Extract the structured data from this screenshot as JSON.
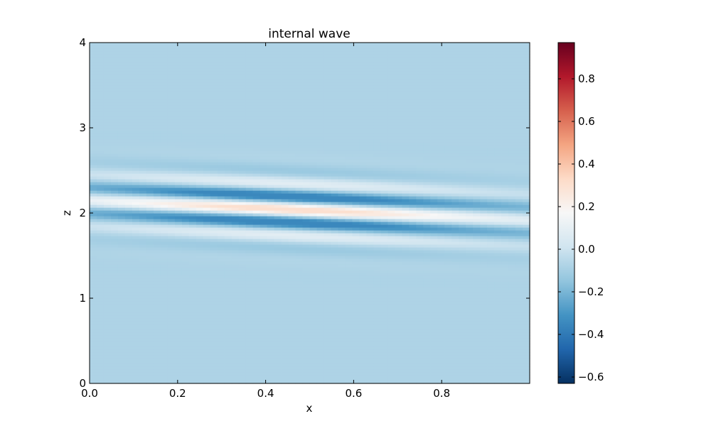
{
  "chart_data": {
    "type": "heatmap",
    "title": "internal wave",
    "xlabel": "x",
    "ylabel": "z",
    "xlim": [
      0.0,
      1.0
    ],
    "ylim": [
      0.0,
      4.0
    ],
    "x_ticks": [
      {
        "value": 0.0,
        "label": "0.0"
      },
      {
        "value": 0.2,
        "label": "0.2"
      },
      {
        "value": 0.4,
        "label": "0.4"
      },
      {
        "value": 0.6,
        "label": "0.6"
      },
      {
        "value": 0.8,
        "label": "0.8"
      }
    ],
    "y_ticks": [
      {
        "value": 0,
        "label": "0"
      },
      {
        "value": 1,
        "label": "1"
      },
      {
        "value": 2,
        "label": "2"
      },
      {
        "value": 3,
        "label": "3"
      },
      {
        "value": 4,
        "label": "4"
      }
    ],
    "colormap": "RdBu_r",
    "colorbar": {
      "vmin": -0.63,
      "vmax": 0.97,
      "ticks": [
        {
          "value": -0.6,
          "label": "−0.6"
        },
        {
          "value": -0.4,
          "label": "−0.4"
        },
        {
          "value": -0.2,
          "label": "−0.2"
        },
        {
          "value": 0.0,
          "label": "0.0"
        },
        {
          "value": 0.2,
          "label": "0.2"
        },
        {
          "value": 0.4,
          "label": "0.4"
        },
        {
          "value": 0.6,
          "label": "0.6"
        },
        {
          "value": 0.8,
          "label": "0.8"
        }
      ],
      "stops": [
        "#053061",
        "#2166ac",
        "#4393c3",
        "#92c5de",
        "#d1e5f0",
        "#f7f7f7",
        "#fddbc7",
        "#f4a582",
        "#d6604d",
        "#b2182b",
        "#67001f"
      ]
    },
    "field": {
      "background_value": -0.08,
      "center_z": [
        2.15,
        1.92
      ],
      "band_width_z": 0.32,
      "vertical_wavelength_z": 0.32,
      "horizontal_envelope_center_x": 0.45,
      "horizontal_envelope_width_x": 0.38,
      "peak_value": 0.3,
      "trough_value": -0.35
    }
  }
}
